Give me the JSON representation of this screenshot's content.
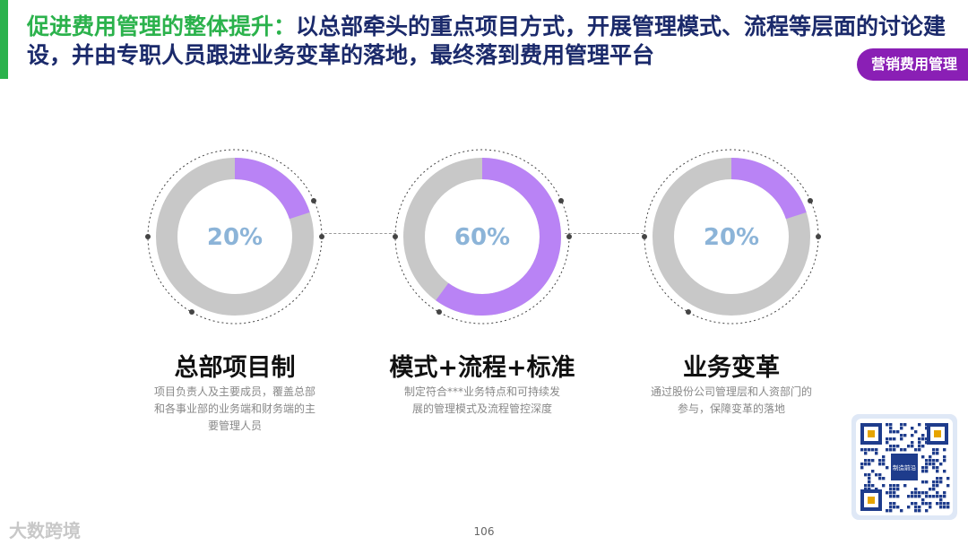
{
  "title": {
    "lead": "促进费用管理的整体提升：",
    "body": "以总部牵头的重点项目方式，开展管理模式、流程等层面的讨论建设，并由专职人员跟进业务变革的落地，最终落到费用管理平台"
  },
  "tag": "营销费用管理",
  "items": [
    {
      "percent_label": "20%",
      "percent_value": 20,
      "heading": "总部项目制",
      "description": "项目负责人及主要成员，覆盖总部和各事业部的业务端和财务端的主要管理人员"
    },
    {
      "percent_label": "60%",
      "percent_value": 60,
      "heading": "模式+流程+标准",
      "description": "制定符合***业务特点和可持续发展的管理模式及流程管控深度"
    },
    {
      "percent_label": "20%",
      "percent_value": 20,
      "heading": "业务变革",
      "description": "通过股份公司管理层和人资部门的参与，保障变革的落地"
    }
  ],
  "colors": {
    "ring_base": "#c8c8c8",
    "ring_fill": "#b983f5",
    "title_accent": "#2bb24c",
    "title": "#1b2a6b",
    "tag_bg": "#8a1fb5"
  },
  "qr_center_label": "制造前沿",
  "page_number": "106",
  "watermark": "大数跨境"
}
